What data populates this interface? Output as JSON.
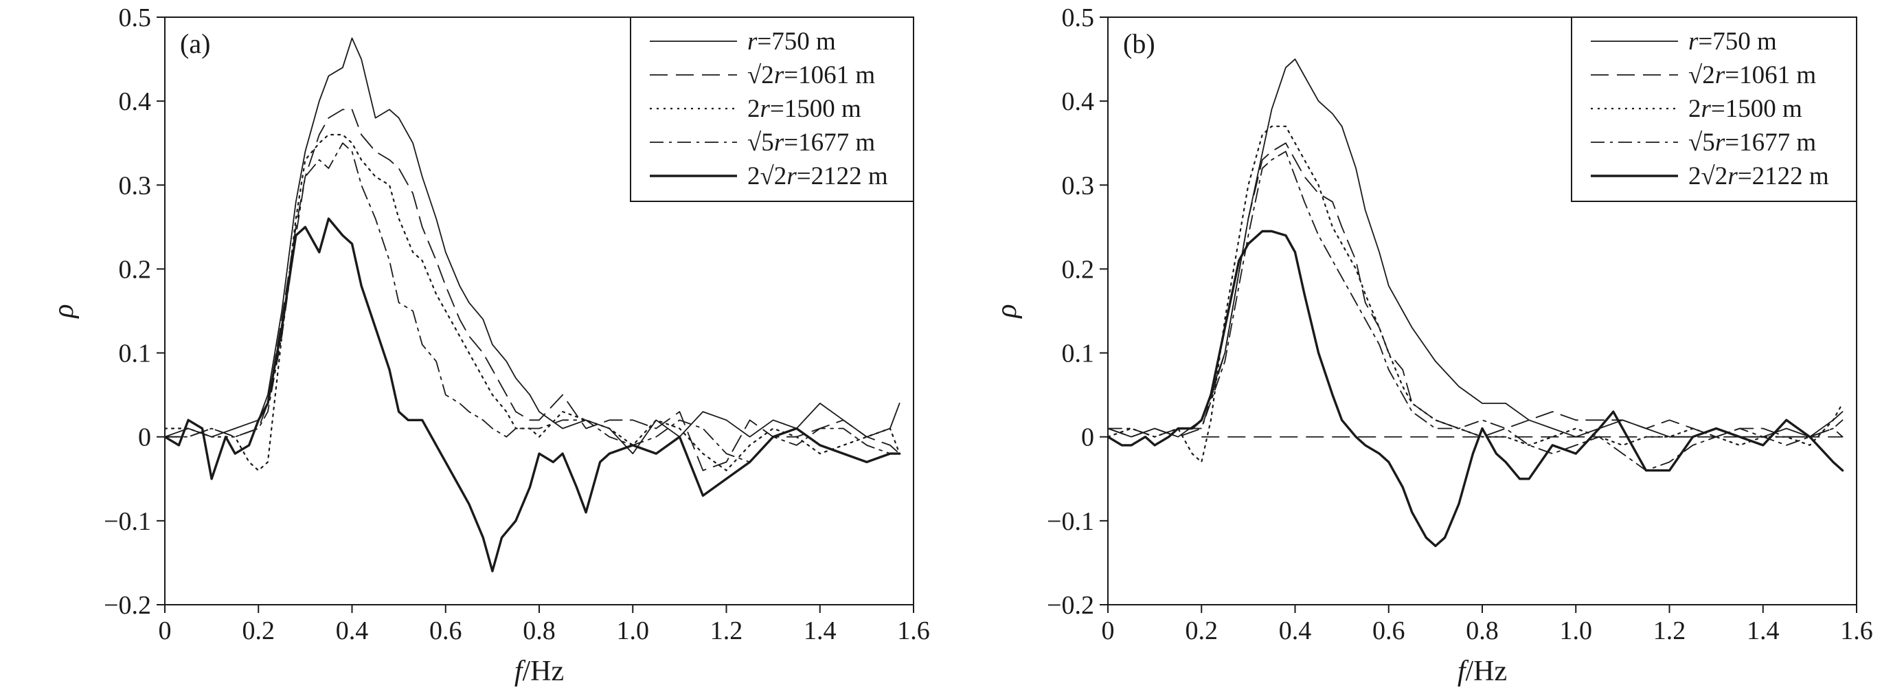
{
  "chart_data": [
    {
      "type": "line",
      "panel_label": "(a)",
      "xlabel": {
        "italic": "f",
        "rest": "/Hz"
      },
      "ylabel": "ρ",
      "xlim": [
        0,
        1.6
      ],
      "ylim": [
        -0.2,
        0.5
      ],
      "x_ticks": [
        "0",
        "0.2",
        "0.4",
        "0.6",
        "0.8",
        "1.0",
        "1.2",
        "1.4",
        "1.6"
      ],
      "y_ticks": [
        "−0.2",
        "−0.1",
        "0",
        "0.1",
        "0.2",
        "0.3",
        "0.4",
        "0.5"
      ],
      "legend_position": "top-right",
      "legend": [
        {
          "pre": "",
          "italic": "r",
          "post": "=750 m"
        },
        {
          "pre": "√2",
          "italic": "r",
          "post": "=1061 m"
        },
        {
          "pre": "2",
          "italic": "r",
          "post": "=1500 m"
        },
        {
          "pre": "√5",
          "italic": "r",
          "post": "=1677 m"
        },
        {
          "pre": "2√2",
          "italic": "r",
          "post": "=2122 m"
        }
      ],
      "series": [
        {
          "name": "r=750 m",
          "dash": "solid",
          "width": 1.8,
          "x": [
            0.0,
            0.05,
            0.1,
            0.15,
            0.2,
            0.22,
            0.25,
            0.28,
            0.3,
            0.33,
            0.35,
            0.38,
            0.4,
            0.42,
            0.45,
            0.48,
            0.5,
            0.53,
            0.55,
            0.58,
            0.6,
            0.63,
            0.65,
            0.68,
            0.7,
            0.73,
            0.75,
            0.78,
            0.8,
            0.85,
            0.9,
            0.95,
            1.0,
            1.05,
            1.1,
            1.15,
            1.2,
            1.25,
            1.3,
            1.35,
            1.4,
            1.45,
            1.5,
            1.55,
            1.57
          ],
          "values": [
            0.0,
            0.01,
            0.0,
            0.01,
            0.02,
            0.05,
            0.15,
            0.28,
            0.34,
            0.4,
            0.43,
            0.44,
            0.475,
            0.45,
            0.38,
            0.39,
            0.38,
            0.35,
            0.31,
            0.26,
            0.22,
            0.18,
            0.16,
            0.14,
            0.11,
            0.09,
            0.07,
            0.05,
            0.03,
            0.01,
            0.02,
            0.01,
            -0.02,
            0.02,
            0.0,
            0.03,
            0.02,
            0.0,
            0.02,
            0.01,
            0.04,
            0.02,
            0.0,
            0.01,
            0.04
          ]
        },
        {
          "name": "√2r=1061 m",
          "dash": "26 12",
          "width": 1.8,
          "x": [
            0.0,
            0.05,
            0.1,
            0.15,
            0.2,
            0.22,
            0.25,
            0.28,
            0.3,
            0.33,
            0.35,
            0.38,
            0.4,
            0.42,
            0.45,
            0.48,
            0.5,
            0.53,
            0.55,
            0.58,
            0.6,
            0.63,
            0.65,
            0.68,
            0.7,
            0.73,
            0.75,
            0.78,
            0.8,
            0.85,
            0.9,
            0.95,
            1.0,
            1.05,
            1.1,
            1.15,
            1.2,
            1.25,
            1.3,
            1.35,
            1.4,
            1.45,
            1.5,
            1.55,
            1.57
          ],
          "values": [
            0.0,
            0.0,
            0.01,
            0.0,
            0.01,
            0.04,
            0.14,
            0.25,
            0.31,
            0.36,
            0.38,
            0.39,
            0.39,
            0.36,
            0.34,
            0.33,
            0.32,
            0.29,
            0.25,
            0.21,
            0.18,
            0.14,
            0.12,
            0.1,
            0.08,
            0.05,
            0.03,
            0.02,
            0.02,
            0.05,
            0.01,
            0.02,
            0.02,
            0.01,
            0.03,
            -0.04,
            -0.03,
            0.02,
            0.0,
            0.0,
            0.01,
            0.02,
            0.0,
            -0.01,
            -0.02
          ]
        },
        {
          "name": "2r=1500 m",
          "dash": "3 7",
          "width": 2.2,
          "x": [
            0.0,
            0.05,
            0.1,
            0.15,
            0.18,
            0.2,
            0.22,
            0.25,
            0.28,
            0.3,
            0.33,
            0.35,
            0.38,
            0.4,
            0.42,
            0.45,
            0.48,
            0.5,
            0.53,
            0.55,
            0.58,
            0.6,
            0.63,
            0.65,
            0.68,
            0.7,
            0.73,
            0.75,
            0.78,
            0.8,
            0.85,
            0.9,
            0.95,
            1.0,
            1.05,
            1.1,
            1.15,
            1.2,
            1.25,
            1.3,
            1.35,
            1.4,
            1.45,
            1.5,
            1.55,
            1.57
          ],
          "values": [
            0.01,
            0.01,
            0.0,
            0.0,
            -0.03,
            -0.04,
            -0.03,
            0.12,
            0.26,
            0.33,
            0.35,
            0.36,
            0.36,
            0.35,
            0.33,
            0.31,
            0.3,
            0.26,
            0.22,
            0.21,
            0.17,
            0.15,
            0.12,
            0.1,
            0.07,
            0.05,
            0.03,
            0.01,
            0.01,
            0.0,
            0.03,
            0.02,
            0.01,
            -0.01,
            0.02,
            0.01,
            -0.02,
            -0.04,
            -0.01,
            0.01,
            0.0,
            -0.02,
            -0.01,
            0.0,
            0.01,
            -0.02
          ]
        },
        {
          "name": "√5r=1677 m",
          "dash": "20 8 4 8",
          "width": 1.8,
          "x": [
            0.0,
            0.05,
            0.1,
            0.15,
            0.2,
            0.22,
            0.25,
            0.28,
            0.3,
            0.33,
            0.35,
            0.38,
            0.4,
            0.42,
            0.45,
            0.48,
            0.5,
            0.53,
            0.55,
            0.58,
            0.6,
            0.63,
            0.65,
            0.68,
            0.7,
            0.73,
            0.75,
            0.78,
            0.8,
            0.85,
            0.9,
            0.95,
            1.0,
            1.05,
            1.1,
            1.15,
            1.2,
            1.25,
            1.3,
            1.35,
            1.4,
            1.45,
            1.5,
            1.55,
            1.57
          ],
          "values": [
            0.0,
            0.0,
            0.01,
            0.0,
            0.01,
            0.03,
            0.12,
            0.24,
            0.31,
            0.33,
            0.32,
            0.35,
            0.34,
            0.3,
            0.26,
            0.21,
            0.16,
            0.15,
            0.11,
            0.09,
            0.05,
            0.04,
            0.03,
            0.02,
            0.01,
            0.0,
            0.01,
            0.01,
            0.01,
            0.02,
            0.02,
            0.0,
            -0.01,
            0.0,
            0.02,
            0.01,
            -0.02,
            -0.03,
            0.0,
            -0.01,
            0.01,
            0.01,
            -0.01,
            -0.02,
            -0.02
          ]
        },
        {
          "name": "2√2r=2122 m",
          "dash": "solid",
          "width": 3.4,
          "x": [
            0.0,
            0.03,
            0.05,
            0.08,
            0.1,
            0.13,
            0.15,
            0.18,
            0.2,
            0.22,
            0.25,
            0.28,
            0.3,
            0.33,
            0.35,
            0.38,
            0.4,
            0.42,
            0.45,
            0.48,
            0.5,
            0.52,
            0.55,
            0.58,
            0.6,
            0.63,
            0.65,
            0.68,
            0.7,
            0.72,
            0.75,
            0.78,
            0.8,
            0.83,
            0.85,
            0.88,
            0.9,
            0.93,
            0.95,
            1.0,
            1.05,
            1.1,
            1.15,
            1.2,
            1.25,
            1.3,
            1.35,
            1.4,
            1.45,
            1.5,
            1.55,
            1.57
          ],
          "values": [
            0.0,
            -0.01,
            0.02,
            0.01,
            -0.05,
            0.0,
            -0.02,
            -0.01,
            0.02,
            0.04,
            0.13,
            0.24,
            0.25,
            0.22,
            0.26,
            0.24,
            0.23,
            0.18,
            0.13,
            0.08,
            0.03,
            0.02,
            0.02,
            -0.01,
            -0.03,
            -0.06,
            -0.08,
            -0.12,
            -0.16,
            -0.12,
            -0.1,
            -0.06,
            -0.02,
            -0.03,
            -0.02,
            -0.06,
            -0.09,
            -0.03,
            -0.02,
            -0.01,
            -0.02,
            0.0,
            -0.07,
            -0.05,
            -0.03,
            0.0,
            0.01,
            -0.01,
            -0.02,
            -0.03,
            -0.02,
            -0.02
          ]
        }
      ]
    },
    {
      "type": "line",
      "panel_label": "(b)",
      "xlabel": {
        "italic": "f",
        "rest": "/Hz"
      },
      "ylabel": "ρ",
      "xlim": [
        0,
        1.6
      ],
      "ylim": [
        -0.2,
        0.5
      ],
      "x_ticks": [
        "0",
        "0.2",
        "0.4",
        "0.6",
        "0.8",
        "1.0",
        "1.2",
        "1.4",
        "1.6"
      ],
      "y_ticks": [
        "−0.2",
        "−0.1",
        "0",
        "0.1",
        "0.2",
        "0.3",
        "0.4",
        "0.5"
      ],
      "legend_position": "top-right",
      "reference_line": {
        "y": 0,
        "x_from": 0.2,
        "x_to": 1.57,
        "dash": "26 12"
      },
      "legend": [
        {
          "pre": "",
          "italic": "r",
          "post": "=750 m"
        },
        {
          "pre": "√2",
          "italic": "r",
          "post": "=1061 m"
        },
        {
          "pre": "2",
          "italic": "r",
          "post": "=1500 m"
        },
        {
          "pre": "√5",
          "italic": "r",
          "post": "=1677 m"
        },
        {
          "pre": "2√2",
          "italic": "r",
          "post": "=2122 m"
        }
      ],
      "series": [
        {
          "name": "r=750 m",
          "dash": "solid",
          "width": 1.8,
          "x": [
            0.0,
            0.05,
            0.1,
            0.15,
            0.2,
            0.25,
            0.3,
            0.35,
            0.38,
            0.4,
            0.42,
            0.45,
            0.48,
            0.5,
            0.53,
            0.55,
            0.58,
            0.6,
            0.63,
            0.65,
            0.7,
            0.75,
            0.8,
            0.85,
            0.9,
            0.95,
            1.0,
            1.05,
            1.1,
            1.15,
            1.2,
            1.25,
            1.3,
            1.35,
            1.4,
            1.45,
            1.5,
            1.55,
            1.57
          ],
          "values": [
            0.01,
            0.0,
            0.01,
            0.0,
            0.02,
            0.1,
            0.26,
            0.39,
            0.44,
            0.45,
            0.43,
            0.4,
            0.385,
            0.37,
            0.32,
            0.27,
            0.22,
            0.18,
            0.15,
            0.13,
            0.09,
            0.06,
            0.04,
            0.04,
            0.02,
            0.01,
            0.0,
            0.01,
            0.02,
            0.01,
            0.0,
            0.0,
            0.01,
            0.0,
            0.0,
            0.01,
            0.0,
            0.02,
            0.03
          ]
        },
        {
          "name": "√2r=1061 m",
          "dash": "26 12",
          "width": 1.8,
          "x": [
            0.0,
            0.05,
            0.1,
            0.15,
            0.2,
            0.25,
            0.3,
            0.33,
            0.35,
            0.38,
            0.4,
            0.42,
            0.45,
            0.48,
            0.5,
            0.53,
            0.55,
            0.58,
            0.6,
            0.63,
            0.65,
            0.7,
            0.75,
            0.8,
            0.85,
            0.9,
            0.95,
            1.0,
            1.05,
            1.1,
            1.15,
            1.2,
            1.25,
            1.3,
            1.35,
            1.4,
            1.45,
            1.5,
            1.55,
            1.57
          ],
          "values": [
            0.01,
            0.0,
            0.01,
            0.0,
            0.01,
            0.1,
            0.26,
            0.33,
            0.34,
            0.35,
            0.33,
            0.31,
            0.29,
            0.28,
            0.25,
            0.21,
            0.16,
            0.13,
            0.1,
            0.08,
            0.04,
            0.02,
            0.01,
            0.0,
            0.01,
            0.02,
            0.03,
            0.02,
            0.02,
            0.02,
            0.01,
            0.02,
            0.01,
            0.0,
            0.01,
            0.01,
            0.0,
            0.0,
            0.01,
            0.02
          ]
        },
        {
          "name": "2r=1500 m",
          "dash": "3 7",
          "width": 2.2,
          "x": [
            0.0,
            0.05,
            0.1,
            0.15,
            0.18,
            0.2,
            0.22,
            0.25,
            0.3,
            0.33,
            0.35,
            0.38,
            0.4,
            0.42,
            0.45,
            0.48,
            0.5,
            0.53,
            0.55,
            0.58,
            0.6,
            0.63,
            0.65,
            0.7,
            0.75,
            0.8,
            0.85,
            0.9,
            0.95,
            1.0,
            1.05,
            1.1,
            1.15,
            1.2,
            1.25,
            1.3,
            1.35,
            1.4,
            1.45,
            1.5,
            1.55,
            1.57
          ],
          "values": [
            0.0,
            0.01,
            0.0,
            0.01,
            -0.02,
            -0.03,
            0.02,
            0.14,
            0.3,
            0.36,
            0.37,
            0.37,
            0.35,
            0.33,
            0.3,
            0.25,
            0.23,
            0.2,
            0.17,
            0.13,
            0.1,
            0.06,
            0.04,
            0.02,
            0.01,
            0.0,
            0.0,
            -0.01,
            0.0,
            0.01,
            0.0,
            -0.01,
            0.0,
            0.0,
            0.01,
            0.0,
            -0.01,
            0.0,
            0.0,
            -0.01,
            0.02,
            0.04
          ]
        },
        {
          "name": "√5r=1677 m",
          "dash": "20 8 4 8",
          "width": 1.8,
          "x": [
            0.0,
            0.05,
            0.1,
            0.15,
            0.2,
            0.25,
            0.3,
            0.33,
            0.35,
            0.38,
            0.4,
            0.42,
            0.45,
            0.48,
            0.5,
            0.53,
            0.55,
            0.58,
            0.6,
            0.63,
            0.65,
            0.7,
            0.75,
            0.8,
            0.85,
            0.9,
            0.95,
            1.0,
            1.05,
            1.1,
            1.15,
            1.2,
            1.25,
            1.3,
            1.35,
            1.4,
            1.45,
            1.5,
            1.55,
            1.57
          ],
          "values": [
            0.01,
            0.01,
            0.0,
            0.01,
            0.01,
            0.09,
            0.24,
            0.32,
            0.33,
            0.34,
            0.31,
            0.28,
            0.24,
            0.21,
            0.19,
            0.16,
            0.14,
            0.11,
            0.08,
            0.05,
            0.03,
            0.01,
            0.01,
            0.02,
            0.01,
            -0.01,
            -0.02,
            -0.01,
            0.0,
            -0.02,
            -0.04,
            -0.03,
            -0.01,
            0.0,
            0.01,
            0.0,
            -0.01,
            0.0,
            0.01,
            0.0
          ]
        },
        {
          "name": "2√2r=2122 m",
          "dash": "solid",
          "width": 3.4,
          "x": [
            0.0,
            0.03,
            0.05,
            0.08,
            0.1,
            0.13,
            0.15,
            0.18,
            0.2,
            0.22,
            0.25,
            0.28,
            0.3,
            0.33,
            0.35,
            0.38,
            0.4,
            0.42,
            0.45,
            0.48,
            0.5,
            0.53,
            0.55,
            0.58,
            0.6,
            0.63,
            0.65,
            0.68,
            0.7,
            0.72,
            0.75,
            0.78,
            0.8,
            0.83,
            0.85,
            0.88,
            0.9,
            0.95,
            1.0,
            1.05,
            1.08,
            1.1,
            1.15,
            1.2,
            1.25,
            1.3,
            1.35,
            1.4,
            1.45,
            1.5,
            1.55,
            1.57
          ],
          "values": [
            0.0,
            -0.01,
            -0.01,
            0.0,
            -0.01,
            0.0,
            0.01,
            0.01,
            0.02,
            0.05,
            0.13,
            0.21,
            0.23,
            0.245,
            0.245,
            0.24,
            0.22,
            0.17,
            0.1,
            0.05,
            0.02,
            0.0,
            -0.01,
            -0.02,
            -0.03,
            -0.06,
            -0.09,
            -0.12,
            -0.13,
            -0.12,
            -0.08,
            -0.02,
            0.01,
            -0.02,
            -0.03,
            -0.05,
            -0.05,
            -0.01,
            -0.02,
            0.01,
            0.03,
            0.01,
            -0.04,
            -0.04,
            0.0,
            0.01,
            0.0,
            -0.01,
            0.02,
            0.0,
            -0.03,
            -0.04
          ]
        }
      ]
    }
  ]
}
